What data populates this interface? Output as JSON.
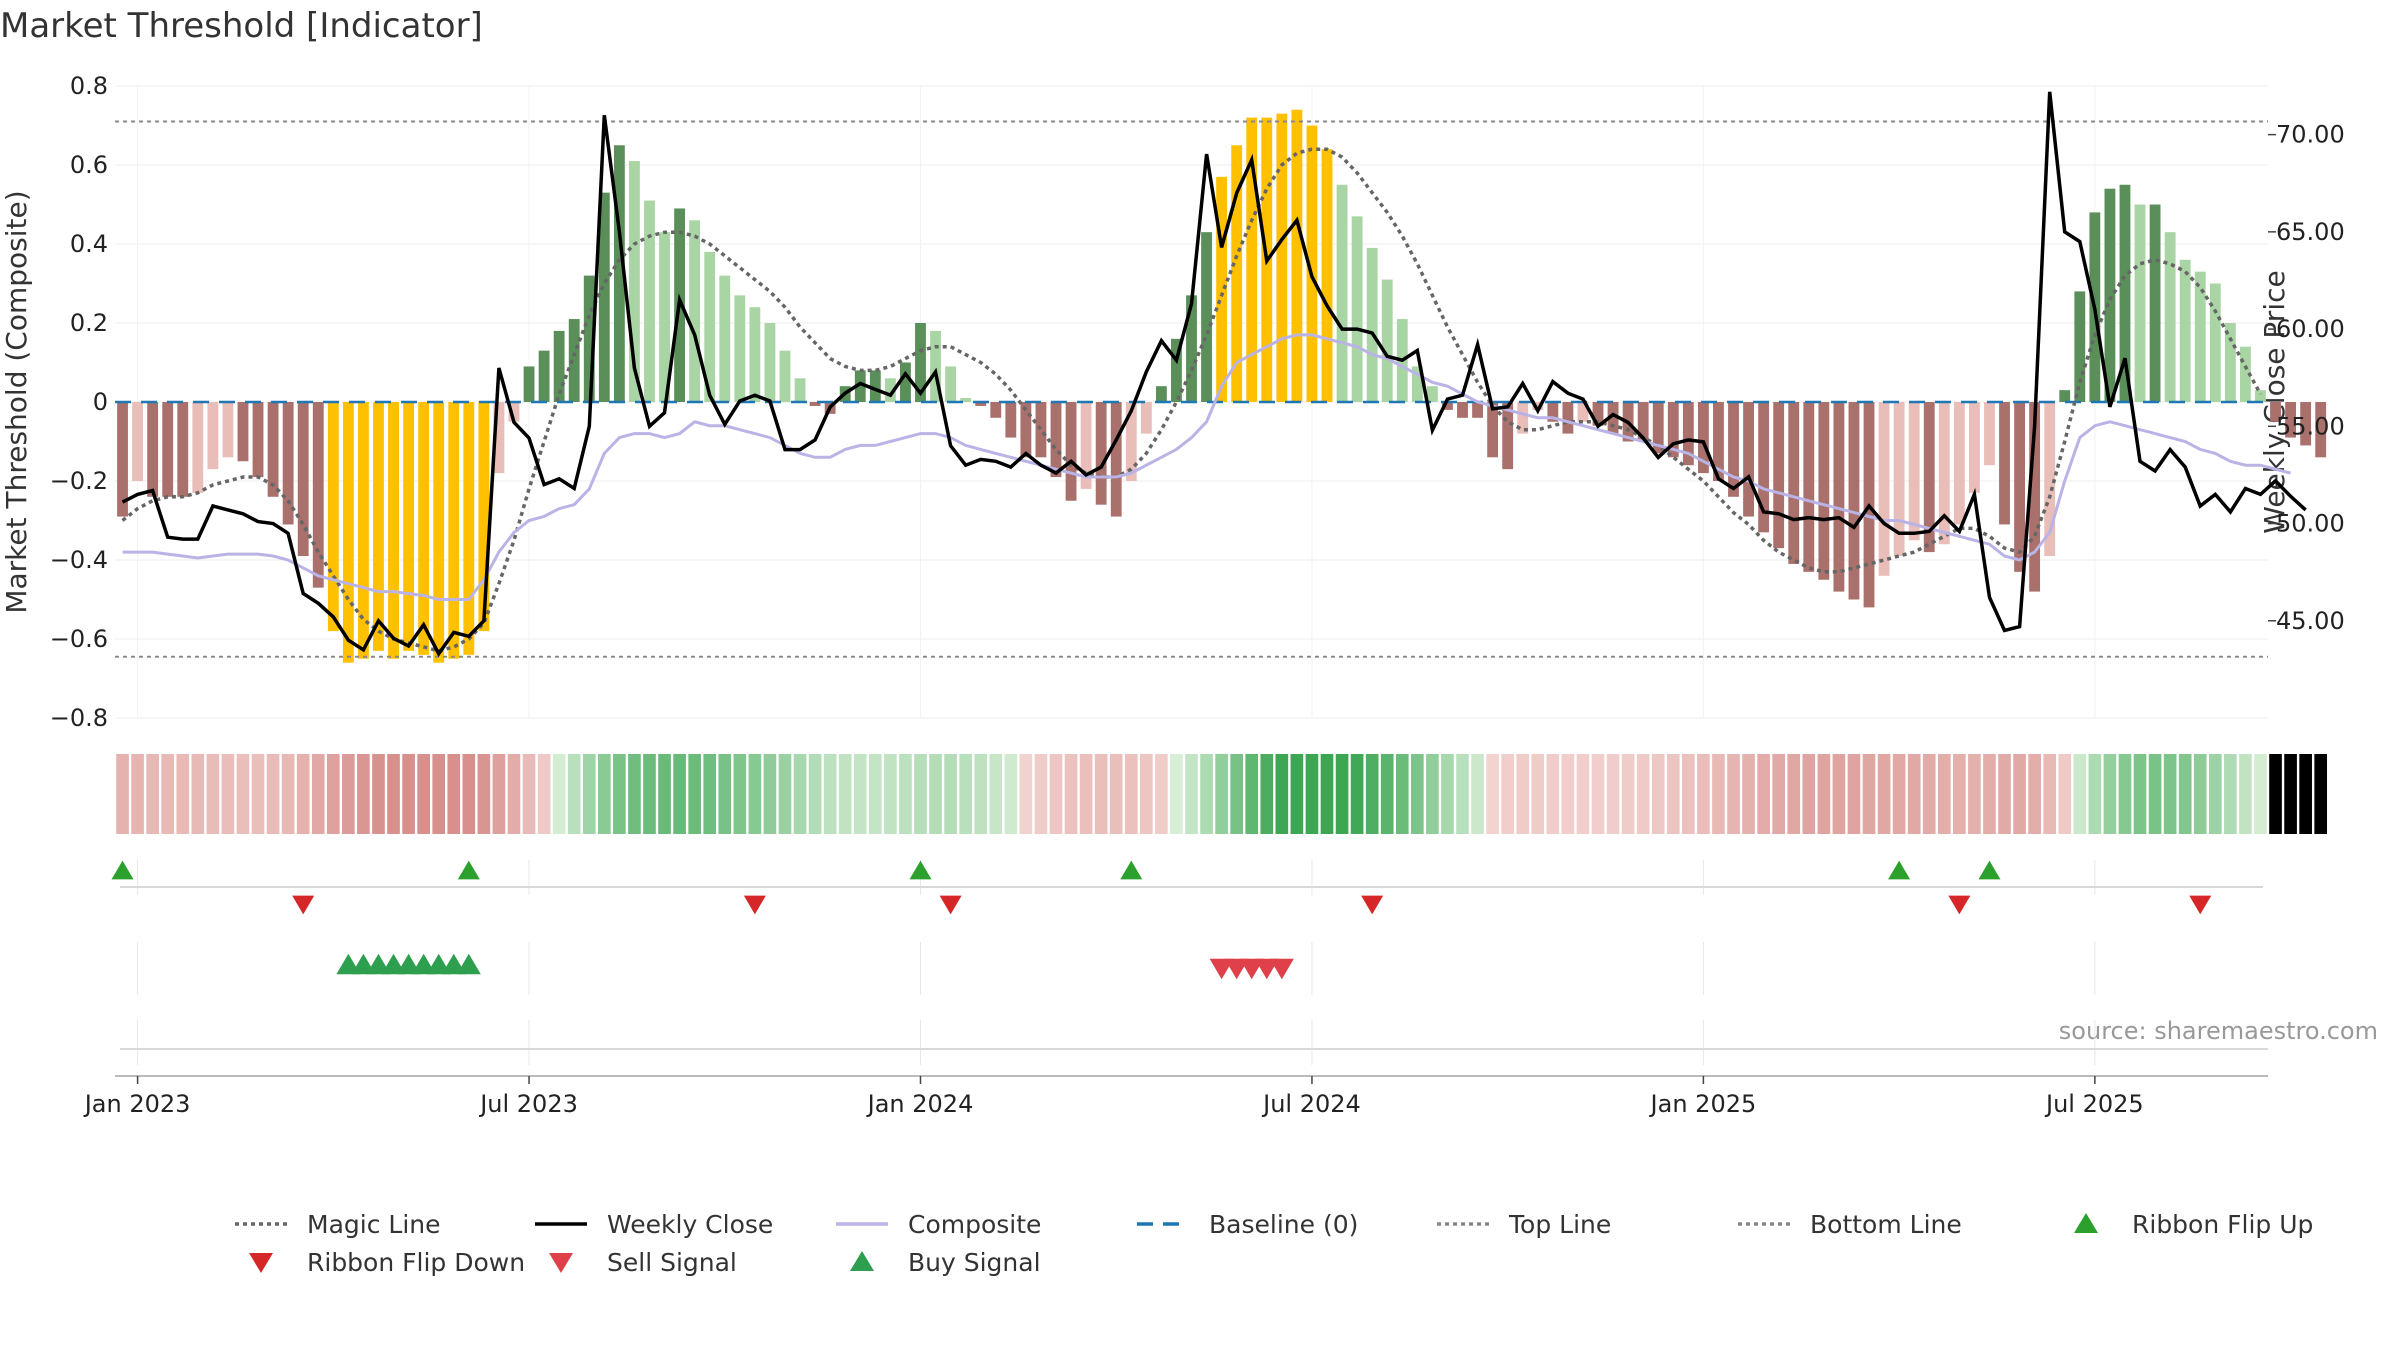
{
  "chart_data": {
    "type": "bar",
    "title": "Market Threshold [Indicator]",
    "ylabel": "Market Threshold (Composite)",
    "y2label": "Weekly Close Price",
    "source": "source: sharemaestro.com",
    "ylim": [
      -0.8,
      0.8
    ],
    "y2lim": [
      40,
      72.5
    ],
    "yticks": [
      0.8,
      0.6,
      0.4,
      0.2,
      0,
      -0.2,
      -0.4,
      -0.6,
      -0.8
    ],
    "ytick_labels": [
      "0.8",
      "0.6",
      "0.4",
      "0.2",
      "0",
      "−0.2",
      "−0.4",
      "−0.6",
      "−0.8"
    ],
    "y2ticks": [
      70,
      65,
      60,
      55,
      50,
      45
    ],
    "y2tick_labels": [
      "70.00",
      "65.00",
      "60.00",
      "55.00",
      "50.00",
      "45.00"
    ],
    "xticks": [
      {
        "week": 1,
        "label": "Jan 2023"
      },
      {
        "week": 27,
        "label": "Jul 2023"
      },
      {
        "week": 53,
        "label": "Jan 2024"
      },
      {
        "week": 79,
        "label": "Jul 2024"
      },
      {
        "week": 105,
        "label": "Jan 2025"
      },
      {
        "week": 131,
        "label": "Jul 2025"
      }
    ],
    "n_weeks": 143,
    "top_line": 0.71,
    "bottom_line": -0.645,
    "grid": true,
    "legend_position": "bottom",
    "composite": [
      -0.29,
      -0.2,
      -0.24,
      -0.24,
      -0.24,
      -0.23,
      -0.17,
      -0.14,
      -0.15,
      -0.19,
      -0.24,
      -0.31,
      -0.39,
      -0.47,
      -0.58,
      -0.66,
      -0.65,
      -0.63,
      -0.65,
      -0.63,
      -0.64,
      -0.66,
      -0.65,
      -0.64,
      -0.58,
      -0.18,
      -0.05,
      0.09,
      0.13,
      0.18,
      0.21,
      0.32,
      0.53,
      0.65,
      0.61,
      0.51,
      0.43,
      0.49,
      0.46,
      0.38,
      0.32,
      0.27,
      0.24,
      0.2,
      0.13,
      0.06,
      -0.01,
      -0.03,
      0.04,
      0.08,
      0.08,
      0.06,
      0.1,
      0.2,
      0.18,
      0.09,
      0.01,
      -0.01,
      -0.04,
      -0.09,
      -0.14,
      -0.14,
      -0.19,
      -0.25,
      -0.22,
      -0.26,
      -0.29,
      -0.2,
      -0.08,
      0.04,
      0.16,
      0.27,
      0.43,
      0.57,
      0.65,
      0.72,
      0.72,
      0.73,
      0.74,
      0.7,
      0.64,
      0.55,
      0.47,
      0.39,
      0.31,
      0.21,
      0.09,
      0.04,
      -0.02,
      -0.04,
      -0.04,
      -0.14,
      -0.17,
      -0.08,
      -0.02,
      -0.05,
      -0.08,
      -0.05,
      -0.06,
      -0.08,
      -0.1,
      -0.1,
      -0.13,
      -0.14,
      -0.16,
      -0.18,
      -0.2,
      -0.24,
      -0.29,
      -0.33,
      -0.37,
      -0.41,
      -0.43,
      -0.45,
      -0.48,
      -0.5,
      -0.52,
      -0.44,
      -0.39,
      -0.35,
      -0.38,
      -0.36,
      -0.31,
      -0.23,
      -0.16,
      -0.31,
      -0.43,
      -0.48,
      -0.39,
      0.03,
      0.28,
      0.48,
      0.54,
      0.55,
      0.5,
      0.5,
      0.43,
      0.36,
      0.33,
      0.3,
      0.2,
      0.14,
      0.03,
      -0.05,
      -0.09,
      -0.11,
      -0.14
    ],
    "weekly_close": [
      51.1,
      51.5,
      51.7,
      49.3,
      49.2,
      49.2,
      50.9,
      50.7,
      50.5,
      50.1,
      50.0,
      49.5,
      46.4,
      45.9,
      45.2,
      44.0,
      43.5,
      45.0,
      44.1,
      43.7,
      44.8,
      43.3,
      44.4,
      44.2,
      45.0,
      58.0,
      55.2,
      54.4,
      52.0,
      52.3,
      51.8,
      55.0,
      71.0,
      65.0,
      58.0,
      55.0,
      55.7,
      61.5,
      59.7,
      56.6,
      55.1,
      56.3,
      56.6,
      56.3,
      53.8,
      53.8,
      54.3,
      56.0,
      56.7,
      57.2,
      56.9,
      56.6,
      57.7,
      56.7,
      57.8,
      54.0,
      53.0,
      53.3,
      53.2,
      52.9,
      53.6,
      53.0,
      52.6,
      53.2,
      52.5,
      52.9,
      54.3,
      55.8,
      57.8,
      59.4,
      58.4,
      61.3,
      69.0,
      64.2,
      67.0,
      68.7,
      63.5,
      64.6,
      65.6,
      62.7,
      61.2,
      60.0,
      60.0,
      59.8,
      58.6,
      58.4,
      58.9,
      54.8,
      56.4,
      56.6,
      59.2,
      55.9,
      56.0,
      57.2,
      55.8,
      57.3,
      56.7,
      56.4,
      55.0,
      55.6,
      55.2,
      54.4,
      53.4,
      54.1,
      54.3,
      54.2,
      52.3,
      51.8,
      52.4,
      50.6,
      50.5,
      50.2,
      50.3,
      50.2,
      50.3,
      49.8,
      50.9,
      50.0,
      49.5,
      49.5,
      49.6,
      50.4,
      49.6,
      51.5,
      46.2,
      44.5,
      44.7,
      55.0,
      72.2,
      65.0,
      64.5,
      61.0,
      56.0,
      58.5,
      53.2,
      52.7,
      53.8,
      52.9,
      50.9,
      51.5,
      50.6,
      51.8,
      51.5,
      52.2,
      51.4,
      50.7
    ],
    "magic_line": [
      -0.3,
      -0.27,
      -0.25,
      -0.24,
      -0.24,
      -0.23,
      -0.21,
      -0.2,
      -0.19,
      -0.19,
      -0.21,
      -0.25,
      -0.31,
      -0.38,
      -0.44,
      -0.5,
      -0.55,
      -0.58,
      -0.6,
      -0.61,
      -0.62,
      -0.63,
      -0.62,
      -0.6,
      -0.56,
      -0.46,
      -0.35,
      -0.22,
      -0.1,
      0.02,
      0.12,
      0.22,
      0.3,
      0.36,
      0.4,
      0.42,
      0.43,
      0.43,
      0.42,
      0.4,
      0.37,
      0.34,
      0.31,
      0.28,
      0.24,
      0.19,
      0.15,
      0.11,
      0.09,
      0.08,
      0.08,
      0.09,
      0.11,
      0.13,
      0.14,
      0.14,
      0.12,
      0.1,
      0.07,
      0.03,
      -0.02,
      -0.07,
      -0.12,
      -0.16,
      -0.18,
      -0.19,
      -0.19,
      -0.17,
      -0.13,
      -0.07,
      0.0,
      0.08,
      0.17,
      0.27,
      0.37,
      0.46,
      0.54,
      0.6,
      0.63,
      0.64,
      0.64,
      0.62,
      0.58,
      0.53,
      0.48,
      0.42,
      0.35,
      0.27,
      0.19,
      0.12,
      0.05,
      -0.01,
      -0.05,
      -0.07,
      -0.07,
      -0.06,
      -0.05,
      -0.05,
      -0.05,
      -0.06,
      -0.07,
      -0.09,
      -0.11,
      -0.14,
      -0.17,
      -0.2,
      -0.24,
      -0.28,
      -0.31,
      -0.35,
      -0.38,
      -0.4,
      -0.42,
      -0.43,
      -0.43,
      -0.42,
      -0.41,
      -0.4,
      -0.39,
      -0.38,
      -0.36,
      -0.34,
      -0.32,
      -0.32,
      -0.34,
      -0.37,
      -0.38,
      -0.34,
      -0.24,
      -0.1,
      0.05,
      0.17,
      0.26,
      0.32,
      0.35,
      0.36,
      0.35,
      0.33,
      0.29,
      0.23,
      0.16,
      0.09,
      0.02
    ],
    "composite_line": [
      -0.38,
      -0.38,
      -0.38,
      -0.385,
      -0.39,
      -0.395,
      -0.39,
      -0.385,
      -0.385,
      -0.385,
      -0.39,
      -0.4,
      -0.42,
      -0.44,
      -0.45,
      -0.46,
      -0.47,
      -0.48,
      -0.48,
      -0.485,
      -0.49,
      -0.5,
      -0.5,
      -0.5,
      -0.45,
      -0.38,
      -0.33,
      -0.3,
      -0.29,
      -0.27,
      -0.26,
      -0.22,
      -0.13,
      -0.09,
      -0.08,
      -0.08,
      -0.09,
      -0.08,
      -0.05,
      -0.06,
      -0.06,
      -0.07,
      -0.08,
      -0.09,
      -0.11,
      -0.13,
      -0.14,
      -0.14,
      -0.12,
      -0.11,
      -0.11,
      -0.1,
      -0.09,
      -0.08,
      -0.08,
      -0.09,
      -0.11,
      -0.12,
      -0.13,
      -0.14,
      -0.15,
      -0.16,
      -0.17,
      -0.18,
      -0.19,
      -0.19,
      -0.19,
      -0.18,
      -0.16,
      -0.14,
      -0.12,
      -0.09,
      -0.05,
      0.04,
      0.1,
      0.12,
      0.14,
      0.16,
      0.17,
      0.17,
      0.16,
      0.15,
      0.14,
      0.12,
      0.11,
      0.09,
      0.07,
      0.05,
      0.04,
      0.02,
      0.0,
      -0.01,
      -0.02,
      -0.03,
      -0.04,
      -0.04,
      -0.05,
      -0.06,
      -0.07,
      -0.08,
      -0.09,
      -0.1,
      -0.11,
      -0.12,
      -0.13,
      -0.15,
      -0.17,
      -0.19,
      -0.2,
      -0.22,
      -0.23,
      -0.24,
      -0.25,
      -0.26,
      -0.27,
      -0.28,
      -0.29,
      -0.3,
      -0.3,
      -0.31,
      -0.32,
      -0.33,
      -0.34,
      -0.35,
      -0.36,
      -0.39,
      -0.4,
      -0.38,
      -0.33,
      -0.2,
      -0.09,
      -0.06,
      -0.05,
      -0.06,
      -0.07,
      -0.08,
      -0.09,
      -0.1,
      -0.12,
      -0.13,
      -0.15,
      -0.16,
      -0.16,
      -0.17,
      -0.18
    ],
    "ribbon_flip_up_weeks": [
      0,
      23,
      53,
      67,
      118,
      124
    ],
    "ribbon_flip_down_weeks": [
      12,
      42,
      55,
      83,
      122,
      138
    ],
    "buy_signal_weeks": [
      15,
      16,
      17,
      18,
      19,
      20,
      21,
      22,
      23
    ],
    "sell_signal_weeks": [
      73,
      74,
      75,
      76,
      77
    ],
    "legend": [
      {
        "label": "Magic Line",
        "kind": "dotted-line",
        "color": "#666666"
      },
      {
        "label": "Weekly Close",
        "kind": "solid-line",
        "color": "#000000"
      },
      {
        "label": "Composite",
        "kind": "solid-line",
        "color": "#b9b3e6"
      },
      {
        "label": "Baseline (0)",
        "kind": "dashed-line",
        "color": "#1f77b4"
      },
      {
        "label": "Top Line",
        "kind": "dotted-line",
        "color": "#888888"
      },
      {
        "label": "Bottom Line",
        "kind": "dotted-line",
        "color": "#888888"
      },
      {
        "label": "Ribbon Flip Up",
        "kind": "triangle-up",
        "color": "#2ca02c"
      },
      {
        "label": "Ribbon Flip Down",
        "kind": "triangle-down",
        "color": "#d62728"
      },
      {
        "label": "Sell Signal",
        "kind": "triangle-down",
        "color": "#e0404a"
      },
      {
        "label": "Buy Signal",
        "kind": "triangle-up",
        "color": "#2e9e4f"
      }
    ],
    "colors": {
      "extreme": "#ffc000",
      "pos_strong": "#5a8f5a",
      "pos_weak": "#a9d5a4",
      "neg_strong": "#a9706c",
      "neg_weak": "#e9bdb8",
      "baseline": "#1f77b4",
      "close": "#000000",
      "composite_line": "#b9b3e6",
      "magic": "#666666"
    }
  }
}
